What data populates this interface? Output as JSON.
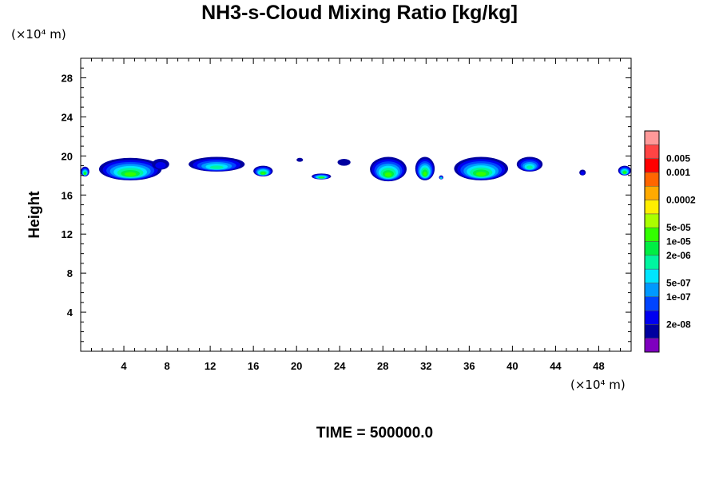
{
  "chart_data": {
    "type": "heatmap",
    "title": "NH3-s-Cloud Mixing Ratio [kg/kg]",
    "ylabel": "Height",
    "y_unit": "(×10⁴ m)",
    "x_unit": "(×10⁴ m)",
    "footer": "TIME = 500000.0",
    "xlim": [
      0,
      51
    ],
    "ylim": [
      0,
      30
    ],
    "x_ticks": [
      4,
      8,
      12,
      16,
      20,
      24,
      28,
      32,
      36,
      40,
      44,
      48
    ],
    "y_ticks": [
      4,
      8,
      12,
      16,
      20,
      24,
      28
    ],
    "colorbar": {
      "colors": [
        "#7f00bf",
        "#00009f",
        "#0000f0",
        "#0044ff",
        "#0099ff",
        "#00e5ff",
        "#00f5a0",
        "#00ee44",
        "#33ff00",
        "#aaff00",
        "#ffee00",
        "#ffaa00",
        "#ff6600",
        "#ff0000",
        "#ff4444",
        "#ff9999"
      ],
      "labels": [
        {
          "after": 1,
          "text": "2e-08"
        },
        {
          "after": 3,
          "text": "1e-07"
        },
        {
          "after": 4,
          "text": "5e-07"
        },
        {
          "after": 6,
          "text": "2e-06"
        },
        {
          "after": 7,
          "text": "1e-05"
        },
        {
          "after": 8,
          "text": "5e-05"
        },
        {
          "after": 10,
          "text": "0.0002"
        },
        {
          "after": 12,
          "text": "0.001"
        },
        {
          "after": 13,
          "text": "0.005"
        }
      ]
    },
    "clouds": [
      {
        "x0": 0.0,
        "x1": 0.8,
        "y0": 17.9,
        "y1": 18.9,
        "level": 8
      },
      {
        "x0": 1.7,
        "x1": 7.5,
        "y0": 17.5,
        "y1": 19.8,
        "level": 8
      },
      {
        "x0": 6.6,
        "x1": 8.2,
        "y0": 18.6,
        "y1": 19.7,
        "level": 2
      },
      {
        "x0": 10.0,
        "x1": 15.2,
        "y0": 18.4,
        "y1": 19.9,
        "level": 6
      },
      {
        "x0": 16.0,
        "x1": 17.8,
        "y0": 17.9,
        "y1": 19.0,
        "level": 8
      },
      {
        "x0": 20.0,
        "x1": 20.6,
        "y0": 19.4,
        "y1": 19.8,
        "level": 1
      },
      {
        "x0": 21.4,
        "x1": 23.2,
        "y0": 17.6,
        "y1": 18.2,
        "level": 8
      },
      {
        "x0": 23.8,
        "x1": 25.0,
        "y0": 19.0,
        "y1": 19.7,
        "level": 1
      },
      {
        "x0": 26.8,
        "x1": 30.2,
        "y0": 17.4,
        "y1": 19.9,
        "level": 8
      },
      {
        "x0": 31.0,
        "x1": 32.8,
        "y0": 17.5,
        "y1": 19.9,
        "level": 8
      },
      {
        "x0": 33.2,
        "x1": 33.6,
        "y0": 17.6,
        "y1": 18.0,
        "level": 6
      },
      {
        "x0": 34.6,
        "x1": 39.6,
        "y0": 17.5,
        "y1": 19.9,
        "level": 8
      },
      {
        "x0": 40.4,
        "x1": 42.8,
        "y0": 18.4,
        "y1": 19.9,
        "level": 6
      },
      {
        "x0": 46.2,
        "x1": 46.8,
        "y0": 18.0,
        "y1": 18.6,
        "level": 2
      },
      {
        "x0": 49.8,
        "x1": 51.0,
        "y0": 18.0,
        "y1": 19.0,
        "level": 8
      }
    ]
  }
}
